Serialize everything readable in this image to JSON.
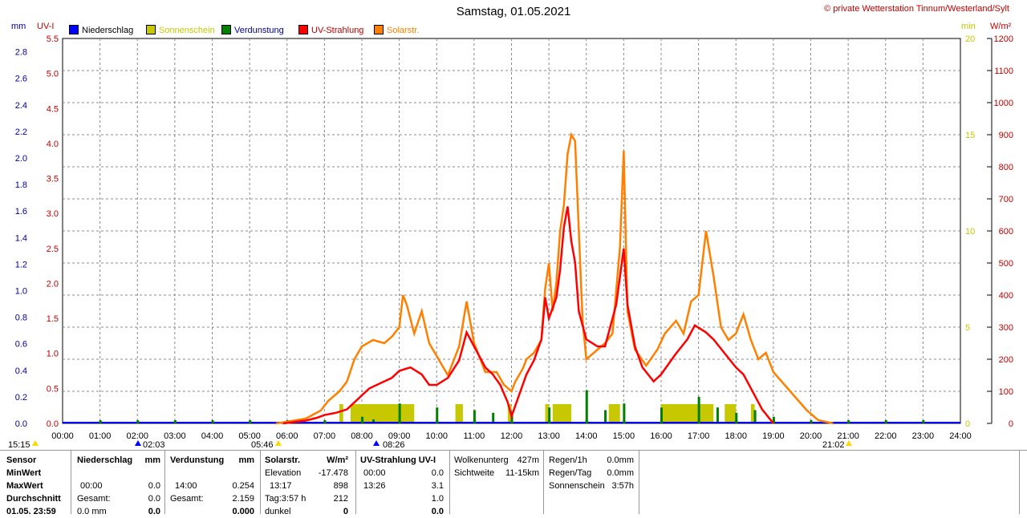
{
  "title": "Samstag, 01.05.2021",
  "copyright": "© private Wetterstation Tinnum/Westerland/Sylt",
  "legend": [
    {
      "label": "Niederschlag",
      "color": "#0000ff"
    },
    {
      "label": "Sonnenschein",
      "color": "#c8c800"
    },
    {
      "label": "Verdunstung",
      "color": "#008000"
    },
    {
      "label": "UV-Strahlung",
      "color": "#ff0000"
    },
    {
      "label": "Solarstr.",
      "color": "#ff8000"
    }
  ],
  "units": {
    "mm": "mm",
    "uvi": "UV-I",
    "min": "min",
    "wm2": "W/m²"
  },
  "axes": {
    "mm_ticks": [
      "0.0",
      "0.2",
      "0.4",
      "0.6",
      "0.8",
      "1.0",
      "1.2",
      "1.4",
      "1.6",
      "1.8",
      "2.0",
      "2.2",
      "2.4",
      "2.6",
      "2.8"
    ],
    "uv_ticks": [
      "0.0",
      "0.5",
      "1.0",
      "1.5",
      "2.0",
      "2.5",
      "3.0",
      "3.5",
      "4.0",
      "4.5",
      "5.0",
      "5.5"
    ],
    "min_ticks": [
      "0",
      "5",
      "10",
      "15",
      "20"
    ],
    "wm2_ticks": [
      "0",
      "100",
      "200",
      "300",
      "400",
      "500",
      "600",
      "700",
      "800",
      "900",
      "1000",
      "1100",
      "1200"
    ],
    "x_ticks": [
      "00:00",
      "01:00",
      "02:00",
      "03:00",
      "04:00",
      "05:00",
      "06:00",
      "07:00",
      "08:00",
      "09:00",
      "10:00",
      "11:00",
      "12:00",
      "13:00",
      "14:00",
      "15:00",
      "16:00",
      "17:00",
      "18:00",
      "19:00",
      "20:00",
      "21:00",
      "22:00",
      "23:00",
      "24:00"
    ]
  },
  "markers": {
    "left": "15:15",
    "m1": "02:03",
    "m2": "05:46",
    "m3": "08:26",
    "m4": "21:02"
  },
  "chart_data": {
    "type": "line",
    "title": "Samstag, 01.05.2021",
    "x_unit": "hour",
    "xlim": [
      0,
      24
    ],
    "series": [
      {
        "name": "Solarstr.",
        "axis": "W/m²",
        "ylim": [
          0,
          1200
        ],
        "points": [
          [
            5.7,
            0
          ],
          [
            6.0,
            5
          ],
          [
            6.5,
            15
          ],
          [
            6.9,
            40
          ],
          [
            7.1,
            70
          ],
          [
            7.4,
            100
          ],
          [
            7.6,
            130
          ],
          [
            7.8,
            200
          ],
          [
            8.0,
            240
          ],
          [
            8.3,
            260
          ],
          [
            8.6,
            250
          ],
          [
            8.8,
            270
          ],
          [
            9.0,
            300
          ],
          [
            9.1,
            400
          ],
          [
            9.2,
            370
          ],
          [
            9.4,
            280
          ],
          [
            9.6,
            350
          ],
          [
            9.8,
            250
          ],
          [
            10.0,
            210
          ],
          [
            10.3,
            150
          ],
          [
            10.6,
            240
          ],
          [
            10.8,
            380
          ],
          [
            11.0,
            250
          ],
          [
            11.3,
            160
          ],
          [
            11.6,
            160
          ],
          [
            11.8,
            120
          ],
          [
            12.0,
            100
          ],
          [
            12.1,
            130
          ],
          [
            12.3,
            170
          ],
          [
            12.4,
            200
          ],
          [
            12.6,
            220
          ],
          [
            12.8,
            260
          ],
          [
            12.9,
            420
          ],
          [
            13.0,
            500
          ],
          [
            13.1,
            350
          ],
          [
            13.2,
            440
          ],
          [
            13.3,
            600
          ],
          [
            13.4,
            680
          ],
          [
            13.5,
            840
          ],
          [
            13.6,
            900
          ],
          [
            13.7,
            880
          ],
          [
            13.8,
            600
          ],
          [
            13.9,
            320
          ],
          [
            14.0,
            200
          ],
          [
            14.3,
            230
          ],
          [
            14.5,
            250
          ],
          [
            14.7,
            280
          ],
          [
            14.9,
            550
          ],
          [
            15.0,
            850
          ],
          [
            15.1,
            350
          ],
          [
            15.3,
            230
          ],
          [
            15.6,
            180
          ],
          [
            15.9,
            230
          ],
          [
            16.1,
            280
          ],
          [
            16.4,
            320
          ],
          [
            16.6,
            280
          ],
          [
            16.8,
            380
          ],
          [
            17.0,
            400
          ],
          [
            17.2,
            600
          ],
          [
            17.4,
            460
          ],
          [
            17.6,
            300
          ],
          [
            17.8,
            260
          ],
          [
            18.0,
            280
          ],
          [
            18.2,
            340
          ],
          [
            18.4,
            260
          ],
          [
            18.6,
            200
          ],
          [
            18.8,
            220
          ],
          [
            19.0,
            160
          ],
          [
            19.3,
            120
          ],
          [
            19.6,
            80
          ],
          [
            19.9,
            40
          ],
          [
            20.2,
            10
          ],
          [
            20.6,
            0
          ]
        ]
      },
      {
        "name": "UV-Strahlung",
        "axis": "UV-I",
        "ylim": [
          0,
          5.5
        ],
        "points": [
          [
            5.9,
            0
          ],
          [
            6.2,
            0.02
          ],
          [
            6.5,
            0.04
          ],
          [
            6.8,
            0.08
          ],
          [
            7.0,
            0.12
          ],
          [
            7.3,
            0.15
          ],
          [
            7.6,
            0.2
          ],
          [
            7.8,
            0.3
          ],
          [
            8.0,
            0.4
          ],
          [
            8.2,
            0.5
          ],
          [
            8.4,
            0.55
          ],
          [
            8.6,
            0.6
          ],
          [
            8.8,
            0.65
          ],
          [
            9.0,
            0.75
          ],
          [
            9.3,
            0.8
          ],
          [
            9.6,
            0.7
          ],
          [
            9.8,
            0.55
          ],
          [
            10.0,
            0.55
          ],
          [
            10.3,
            0.65
          ],
          [
            10.6,
            0.9
          ],
          [
            10.8,
            1.3
          ],
          [
            11.0,
            1.1
          ],
          [
            11.3,
            0.8
          ],
          [
            11.5,
            0.7
          ],
          [
            11.7,
            0.55
          ],
          [
            11.9,
            0.3
          ],
          [
            12.0,
            0.1
          ],
          [
            12.2,
            0.4
          ],
          [
            12.4,
            0.7
          ],
          [
            12.6,
            0.9
          ],
          [
            12.8,
            1.2
          ],
          [
            12.9,
            1.8
          ],
          [
            13.0,
            1.5
          ],
          [
            13.2,
            1.8
          ],
          [
            13.3,
            2.2
          ],
          [
            13.4,
            2.8
          ],
          [
            13.5,
            3.1
          ],
          [
            13.6,
            2.6
          ],
          [
            13.7,
            2.3
          ],
          [
            13.8,
            1.6
          ],
          [
            14.0,
            1.2
          ],
          [
            14.3,
            1.1
          ],
          [
            14.5,
            1.1
          ],
          [
            14.8,
            1.7
          ],
          [
            15.0,
            2.5
          ],
          [
            15.1,
            1.7
          ],
          [
            15.3,
            1.1
          ],
          [
            15.5,
            0.8
          ],
          [
            15.8,
            0.6
          ],
          [
            16.0,
            0.7
          ],
          [
            16.4,
            1.0
          ],
          [
            16.7,
            1.2
          ],
          [
            16.9,
            1.4
          ],
          [
            17.2,
            1.3
          ],
          [
            17.4,
            1.2
          ],
          [
            17.7,
            1.0
          ],
          [
            18.0,
            0.8
          ],
          [
            18.2,
            0.7
          ],
          [
            18.5,
            0.4
          ],
          [
            18.7,
            0.2
          ],
          [
            19.0,
            0
          ]
        ]
      },
      {
        "name": "Sonnenschein",
        "axis": "min",
        "ylim": [
          0,
          20
        ],
        "bars": [
          [
            7.4,
            7.5,
            1
          ],
          [
            7.7,
            9.4,
            1
          ],
          [
            10.5,
            10.7,
            1
          ],
          [
            11.9,
            12.0,
            1
          ],
          [
            12.9,
            13.0,
            1
          ],
          [
            13.1,
            13.6,
            1
          ],
          [
            14.6,
            14.9,
            1
          ],
          [
            16.0,
            16.3,
            1
          ],
          [
            16.3,
            17.4,
            1
          ],
          [
            17.7,
            18.0,
            1
          ],
          [
            18.4,
            18.5,
            1
          ]
        ]
      },
      {
        "name": "Verdunstung",
        "axis": "mm",
        "ylim": [
          0,
          2.9
        ],
        "bars": [
          [
            8.0,
            0.05
          ],
          [
            8.3,
            0.03
          ],
          [
            9.0,
            0.15
          ],
          [
            10.0,
            0.12
          ],
          [
            11.0,
            0.1
          ],
          [
            11.5,
            0.08
          ],
          [
            12.0,
            0.09
          ],
          [
            13.0,
            0.12
          ],
          [
            14.0,
            0.25
          ],
          [
            14.5,
            0.1
          ],
          [
            15.0,
            0.15
          ],
          [
            16.0,
            0.12
          ],
          [
            17.0,
            0.2
          ],
          [
            17.5,
            0.12
          ],
          [
            18.0,
            0.08
          ],
          [
            18.5,
            0.1
          ],
          [
            19.0,
            0.05
          ]
        ]
      },
      {
        "name": "Niederschlag",
        "axis": "mm",
        "ylim": [
          0,
          2.9
        ],
        "values": []
      }
    ]
  },
  "stats": {
    "headers": {
      "sensor": "Sensor",
      "nied": "Niederschlag",
      "nied_unit": "mm",
      "verd": "Verdunstung",
      "verd_unit": "mm",
      "sol": "Solarstr.",
      "sol_unit": "W/m²",
      "uv": "UV-Strahlung UV-I"
    },
    "rows": {
      "min": "MinWert",
      "max": "MaxWert",
      "avg": "Durchschnitt",
      "date": "01.05. 23:59"
    },
    "nied": {
      "max_time": "00:00",
      "max_val": "0.0",
      "gesamt_label": "Gesamt:",
      "gesamt_val": "0.0",
      "last": "0.0 mm",
      "last_val": "0.0"
    },
    "verd": {
      "max_time": "14:00",
      "max_val": "0.254",
      "gesamt_label": "Gesamt:",
      "gesamt_val": "2.159",
      "last_val": "0.000"
    },
    "sol": {
      "elev_label": "Elevation",
      "elev_val": "-17.478",
      "max_time": "13:17",
      "max_val": "898",
      "tag_label": "Tag:3:57 h",
      "tag_val": "212",
      "dunkel_label": "dunkel",
      "dunkel_val": "0"
    },
    "uv": {
      "min_time": "00:00",
      "min_val": "0.0",
      "max_time": "13:26",
      "max_val": "3.1",
      "avg_val": "1.0",
      "last_val": "0.0"
    },
    "wolken": {
      "l1": "Wolkenunterg",
      "v1": "427m",
      "l2": "Sichtweite",
      "v2": "11-15km"
    },
    "regen": {
      "l1": "Regen/1h",
      "v1": "0.0mm",
      "l2": "Regen/Tag",
      "v2": "0.0mm",
      "l3": "Sonnenschein",
      "v3": "3:57h"
    }
  }
}
